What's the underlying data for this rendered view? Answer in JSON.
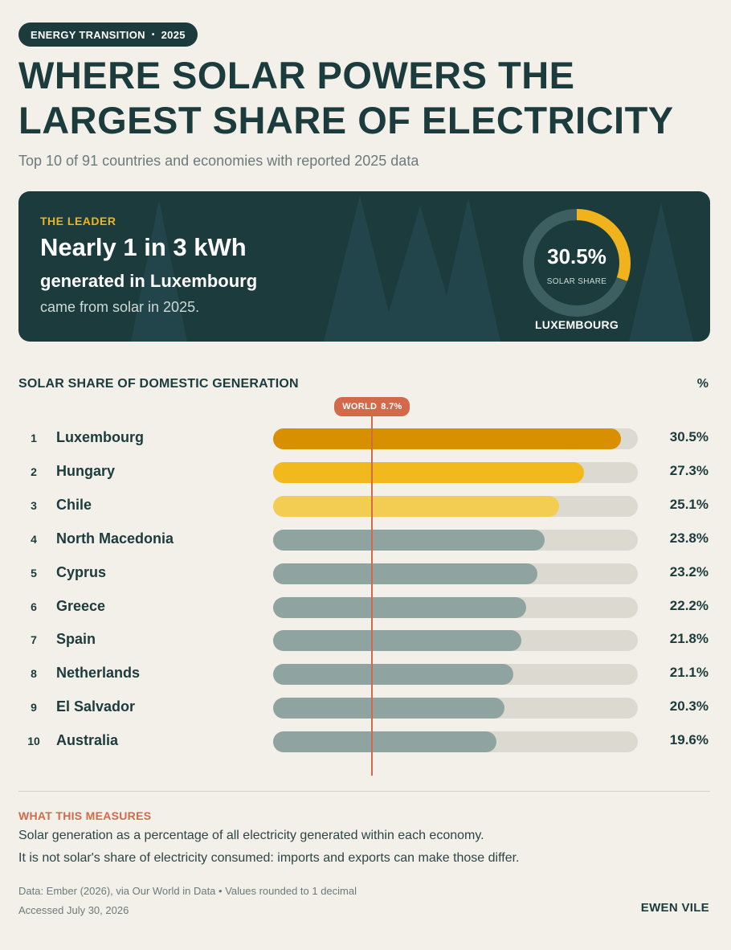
{
  "header": {
    "pill_topic": "ENERGY TRANSITION",
    "pill_sep": "•",
    "pill_year": "2025",
    "title": "WHERE SOLAR POWERS THE LARGEST SHARE OF ELECTRICITY",
    "subtitle": "Top 10 of 91 countries and economies with reported 2025 data"
  },
  "hero": {
    "eyebrow": "THE LEADER",
    "headline": "Nearly 1 in 3 kWh",
    "line2": "generated in Luxembourg",
    "line3": "came from solar in 2025.",
    "donut_value_text": "30.5%",
    "donut_value": 30.5,
    "donut_label": "SOLAR SHARE",
    "donut_country": "LUXEMBOURG"
  },
  "chart_data": {
    "type": "bar",
    "title": "SOLAR SHARE OF DOMESTIC GENERATION",
    "unit": "%",
    "categories": [
      "Luxembourg",
      "Hungary",
      "Chile",
      "North Macedonia",
      "Cyprus",
      "Greece",
      "Spain",
      "Netherlands",
      "El Salvador",
      "Australia"
    ],
    "ranks": [
      "1",
      "2",
      "3",
      "4",
      "5",
      "6",
      "7",
      "8",
      "9",
      "10"
    ],
    "values": [
      30.5,
      27.3,
      25.1,
      23.8,
      23.2,
      22.2,
      21.8,
      21.1,
      20.3,
      19.6
    ],
    "value_labels": [
      "30.5%",
      "27.3%",
      "25.1%",
      "23.8%",
      "23.2%",
      "22.2%",
      "21.8%",
      "21.1%",
      "20.3%",
      "19.6%"
    ],
    "xlim": [
      0,
      32
    ],
    "reference": {
      "label": "WORLD",
      "value": 8.7,
      "value_text": "8.7%"
    },
    "colors": [
      "#d99000",
      "#f2b91e",
      "#f3cc52",
      "#8fa4a1",
      "#8fa4a1",
      "#8fa4a1",
      "#8fa4a1",
      "#8fa4a1",
      "#8fa4a1",
      "#8fa4a1"
    ],
    "track_color": "#dcd9d1",
    "reference_color": "#d2694a",
    "grid": false
  },
  "footer": {
    "measure_title": "WHAT THIS MEASURES",
    "measure_line1": "Solar generation as a percentage of all electricity generated within each economy.",
    "measure_line2": "It is not solar's share of electricity consumed: imports and exports can make those differ.",
    "source_line1": "Data: Ember (2026), via Our World in Data  •  Values rounded to 1 decimal",
    "source_line2": "Accessed July 30, 2026",
    "author": "EWEN VILE"
  }
}
